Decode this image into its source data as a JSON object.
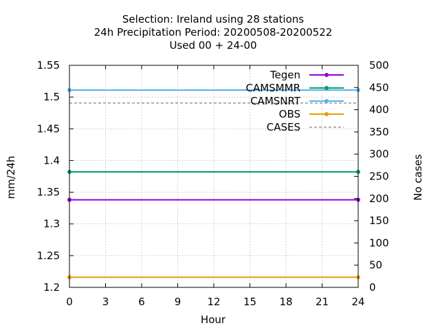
{
  "chart_data": {
    "type": "line",
    "title_lines": [
      "Selection: Ireland using    28 stations",
      "24h Precipitation   Period: 20200508-20200522",
      "Used  00  + 24-00"
    ],
    "xlabel": "Hour",
    "ylabel": "mm/24h",
    "y2label": "No cases",
    "xlim": [
      0,
      24
    ],
    "ylim": [
      1.2,
      1.55
    ],
    "y2lim": [
      0,
      500
    ],
    "xticks": [
      0,
      3,
      6,
      9,
      12,
      15,
      18,
      21,
      24
    ],
    "xtick_labels": [
      "0",
      "3",
      "6",
      "9",
      "12",
      "15",
      "18",
      "21",
      "24"
    ],
    "yticks": [
      1.2,
      1.25,
      1.3,
      1.35,
      1.4,
      1.45,
      1.5,
      1.55
    ],
    "ytick_labels": [
      "1.2",
      "1.25",
      "1.3",
      "1.35",
      "1.4",
      "1.45",
      "1.5",
      "1.55"
    ],
    "y2ticks": [
      0,
      50,
      100,
      150,
      200,
      250,
      300,
      350,
      400,
      450,
      500
    ],
    "y2tick_labels": [
      "0",
      "50",
      "100",
      "150",
      "200",
      "250",
      "300",
      "350",
      "400",
      "450",
      "500"
    ],
    "grid": true,
    "legend_position": "top-right",
    "x": [
      0,
      24
    ],
    "series": [
      {
        "name": "Tegen",
        "values": [
          1.338,
          1.338
        ],
        "color": "#9400d3",
        "style": "solid",
        "marker": true,
        "axis": "y"
      },
      {
        "name": "CAMSMMR",
        "values": [
          1.382,
          1.382
        ],
        "color": "#009e73",
        "style": "solid",
        "marker": true,
        "axis": "y"
      },
      {
        "name": "CAMSNRT",
        "values": [
          1.511,
          1.511
        ],
        "color": "#56b4e9",
        "style": "solid",
        "marker": true,
        "axis": "y"
      },
      {
        "name": "OBS",
        "values": [
          1.216,
          1.216
        ],
        "color": "#e69f00",
        "style": "solid",
        "marker": true,
        "axis": "y"
      },
      {
        "name": "CASES",
        "values": [
          415,
          415
        ],
        "color": "#808080",
        "style": "dashed",
        "marker": false,
        "axis": "y2"
      }
    ]
  }
}
